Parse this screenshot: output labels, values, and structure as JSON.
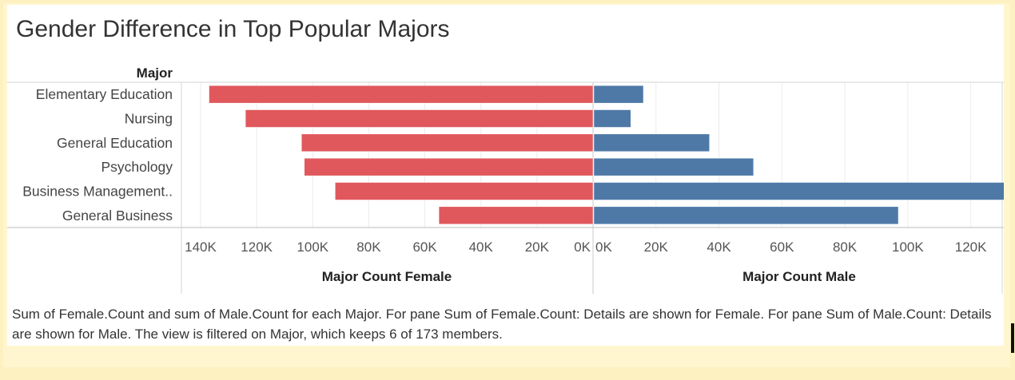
{
  "chart_data": {
    "type": "bar",
    "title": "Gender Difference in Top Popular Majors",
    "row_header": "Major",
    "categories": [
      "Elementary Education",
      "Nursing",
      "General Education",
      "Psychology",
      "Business Management..",
      "General Business"
    ],
    "series": [
      {
        "name": "Major Count Female",
        "color": "#e0585c",
        "values": [
          137000,
          124000,
          104000,
          103000,
          92000,
          55000
        ]
      },
      {
        "name": "Major Count Male",
        "color": "#4e79a7",
        "values": [
          16000,
          12000,
          37000,
          51000,
          135000,
          97000
        ]
      }
    ],
    "female_axis": {
      "label": "Major Count Female",
      "range": [
        140000,
        0
      ],
      "ticks": [
        "140K",
        "120K",
        "100K",
        "80K",
        "60K",
        "40K",
        "20K",
        "0K"
      ],
      "tick_values": [
        140000,
        120000,
        100000,
        80000,
        60000,
        40000,
        20000,
        0
      ]
    },
    "male_axis": {
      "label": "Major Count Male",
      "range": [
        0,
        130000
      ],
      "ticks": [
        "0K",
        "20K",
        "40K",
        "60K",
        "80K",
        "100K",
        "120K"
      ],
      "tick_values": [
        0,
        20000,
        40000,
        60000,
        80000,
        100000,
        120000
      ]
    },
    "grid": true,
    "caption": "Sum of Female.Count and sum of Male.Count for each Major.  For pane Sum of Female.Count:  Details are shown for Female.  For pane Sum of Male.Count:  Details are shown for Male. The view is filtered on Major, which keeps 6 of 173 members."
  }
}
